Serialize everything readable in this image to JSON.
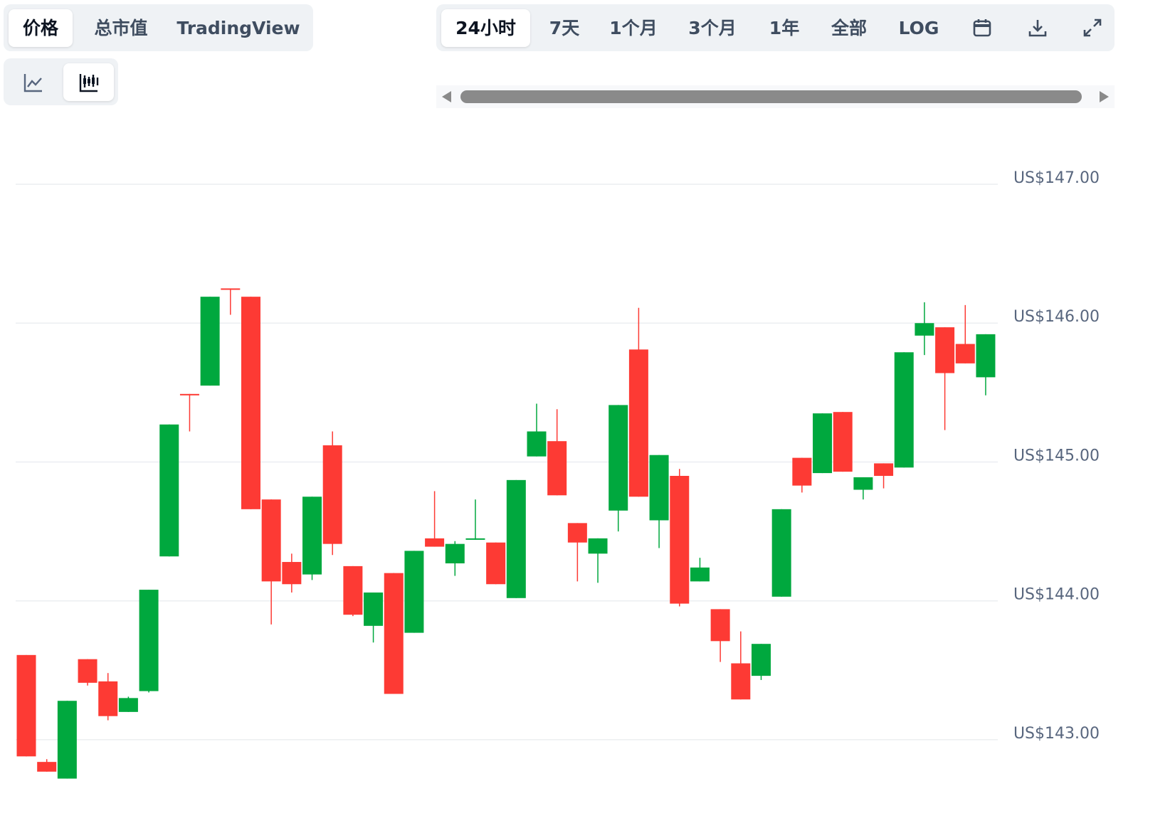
{
  "toolbar": {
    "tabs": [
      "价格",
      "总市值",
      "TradingView"
    ],
    "ranges": [
      "24小时",
      "7天",
      "1个月",
      "3个月",
      "1年",
      "全部",
      "LOG"
    ]
  },
  "chart_data": {
    "type": "candlestick",
    "up_color": "#00a83e",
    "down_color": "#fd3a34",
    "grid": true,
    "open": [
      143.61,
      142.84,
      142.72,
      143.58,
      143.42,
      143.2,
      143.35,
      144.32,
      145.49,
      145.55,
      146.25,
      146.19,
      144.73,
      144.28,
      144.19,
      145.12,
      144.25,
      143.82,
      144.2,
      143.77,
      144.45,
      144.27,
      144.44,
      144.42,
      144.02,
      145.04,
      145.15,
      144.56,
      144.34,
      144.65,
      145.81,
      144.58,
      144.9,
      144.14,
      143.94,
      143.55,
      143.46,
      144.03,
      145.03,
      144.92,
      145.36,
      144.8,
      144.99,
      144.96,
      145.91,
      145.97,
      145.85,
      145.61
    ],
    "high": [
      143.61,
      142.86,
      143.28,
      143.58,
      143.48,
      143.31,
      144.08,
      145.27,
      145.49,
      146.19,
      146.25,
      146.19,
      144.73,
      144.34,
      144.75,
      145.22,
      144.25,
      144.06,
      144.2,
      144.36,
      144.79,
      144.43,
      144.73,
      144.42,
      144.87,
      145.42,
      145.38,
      144.56,
      144.45,
      145.41,
      146.11,
      145.05,
      144.95,
      144.31,
      143.94,
      143.78,
      143.69,
      144.66,
      145.03,
      145.35,
      145.36,
      144.89,
      144.99,
      145.79,
      146.15,
      145.97,
      146.13,
      145.92
    ],
    "low": [
      142.88,
      142.77,
      142.72,
      143.39,
      143.14,
      143.2,
      143.34,
      144.32,
      145.22,
      145.55,
      146.06,
      144.66,
      143.83,
      144.06,
      144.15,
      144.33,
      143.89,
      143.7,
      143.33,
      143.77,
      144.39,
      144.18,
      144.44,
      144.12,
      144.02,
      145.04,
      144.76,
      144.14,
      144.13,
      144.5,
      144.75,
      144.38,
      143.96,
      144.14,
      143.56,
      143.29,
      143.43,
      144.03,
      144.78,
      144.92,
      144.93,
      144.73,
      144.81,
      144.96,
      145.77,
      145.23,
      145.71,
      145.48
    ],
    "close": [
      142.88,
      142.77,
      143.28,
      143.41,
      143.17,
      143.3,
      144.08,
      145.27,
      145.48,
      146.19,
      146.24,
      144.66,
      144.14,
      144.12,
      144.75,
      144.41,
      143.9,
      144.06,
      143.33,
      144.36,
      144.39,
      144.41,
      144.45,
      144.12,
      144.87,
      145.22,
      144.76,
      144.42,
      144.45,
      145.41,
      144.75,
      145.05,
      143.98,
      144.24,
      143.71,
      143.29,
      143.69,
      144.66,
      144.83,
      145.35,
      144.93,
      144.89,
      144.9,
      145.79,
      146.0,
      145.64,
      145.71,
      145.92
    ],
    "ylim": [
      142.6,
      147.35
    ],
    "yticks": [
      {
        "value": 143,
        "label": "US$143.00"
      },
      {
        "value": 144,
        "label": "US$144.00"
      },
      {
        "value": 145,
        "label": "US$145.00"
      },
      {
        "value": 146,
        "label": "US$146.00"
      },
      {
        "value": 147,
        "label": "US$147.00"
      }
    ]
  }
}
